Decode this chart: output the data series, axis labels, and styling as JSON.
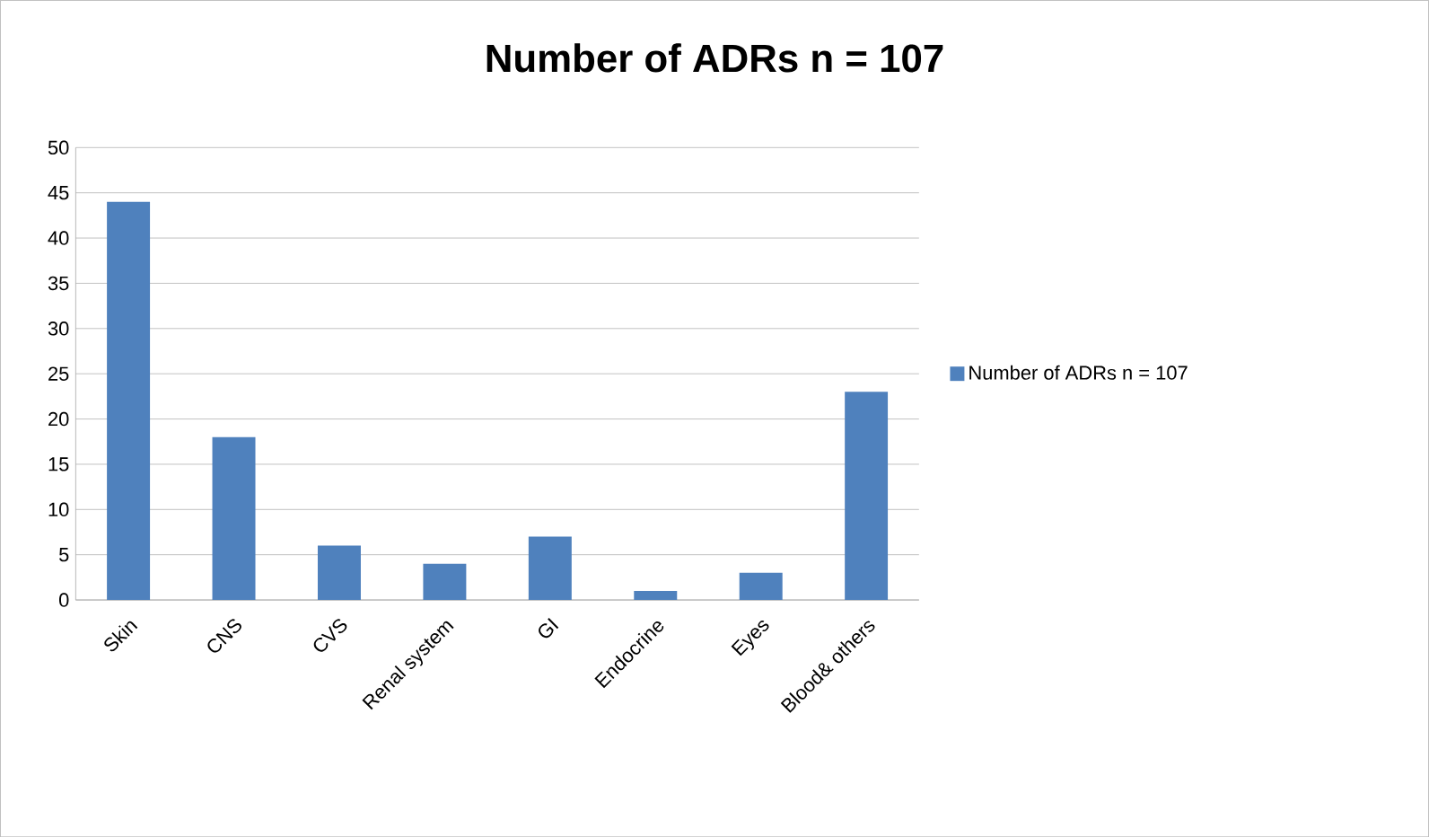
{
  "chart_data": {
    "type": "bar",
    "title": "Number of ADRs n = 107",
    "categories": [
      "Skin",
      "CNS",
      "CVS",
      "Renal system",
      "GI",
      "Endocrine",
      "Eyes",
      "Blood& others"
    ],
    "series": [
      {
        "name": "Number of ADRs n = 107",
        "color": "#4f81bd",
        "values": [
          44,
          18,
          6,
          4,
          7,
          1,
          3,
          23
        ]
      }
    ],
    "ylim": [
      0,
      50
    ],
    "yticks": [
      0,
      5,
      10,
      15,
      20,
      25,
      30,
      35,
      40,
      45,
      50
    ],
    "grid": "y",
    "legend": "right"
  }
}
